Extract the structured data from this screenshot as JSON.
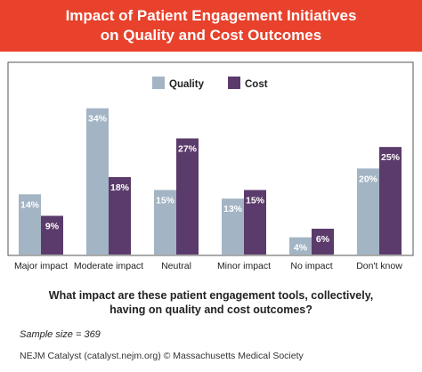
{
  "header": {
    "title_line1": "Impact of Patient Engagement Initiatives",
    "title_line2": "on Quality and Cost Outcomes"
  },
  "chart_data": {
    "type": "bar",
    "title": "Impact of Patient Engagement Initiatives on Quality and Cost Outcomes",
    "categories": [
      "Major impact",
      "Moderate impact",
      "Neutral",
      "Minor impact",
      "No impact",
      "Don't know"
    ],
    "series": [
      {
        "name": "Quality",
        "color": "#a3b4c4",
        "values": [
          14,
          34,
          15,
          13,
          4,
          20
        ],
        "labels": [
          "14%",
          "34%",
          "15%",
          "13%",
          "4%",
          "20%"
        ]
      },
      {
        "name": "Cost",
        "color": "#5b3b6b",
        "values": [
          9,
          18,
          27,
          15,
          6,
          25
        ],
        "labels": [
          "9%",
          "18%",
          "27%",
          "15%",
          "6%",
          "25%"
        ]
      }
    ],
    "ylim": [
      0,
      36
    ],
    "grid": false,
    "legend_position": "top"
  },
  "question": {
    "line1": "What impact are these patient engagement tools, collectively,",
    "line2": "having on quality and cost outcomes?"
  },
  "sample_size": "Sample size = 369",
  "credit": "NEJM Catalyst (catalyst.nejm.org) © Massachusetts Medical Society"
}
